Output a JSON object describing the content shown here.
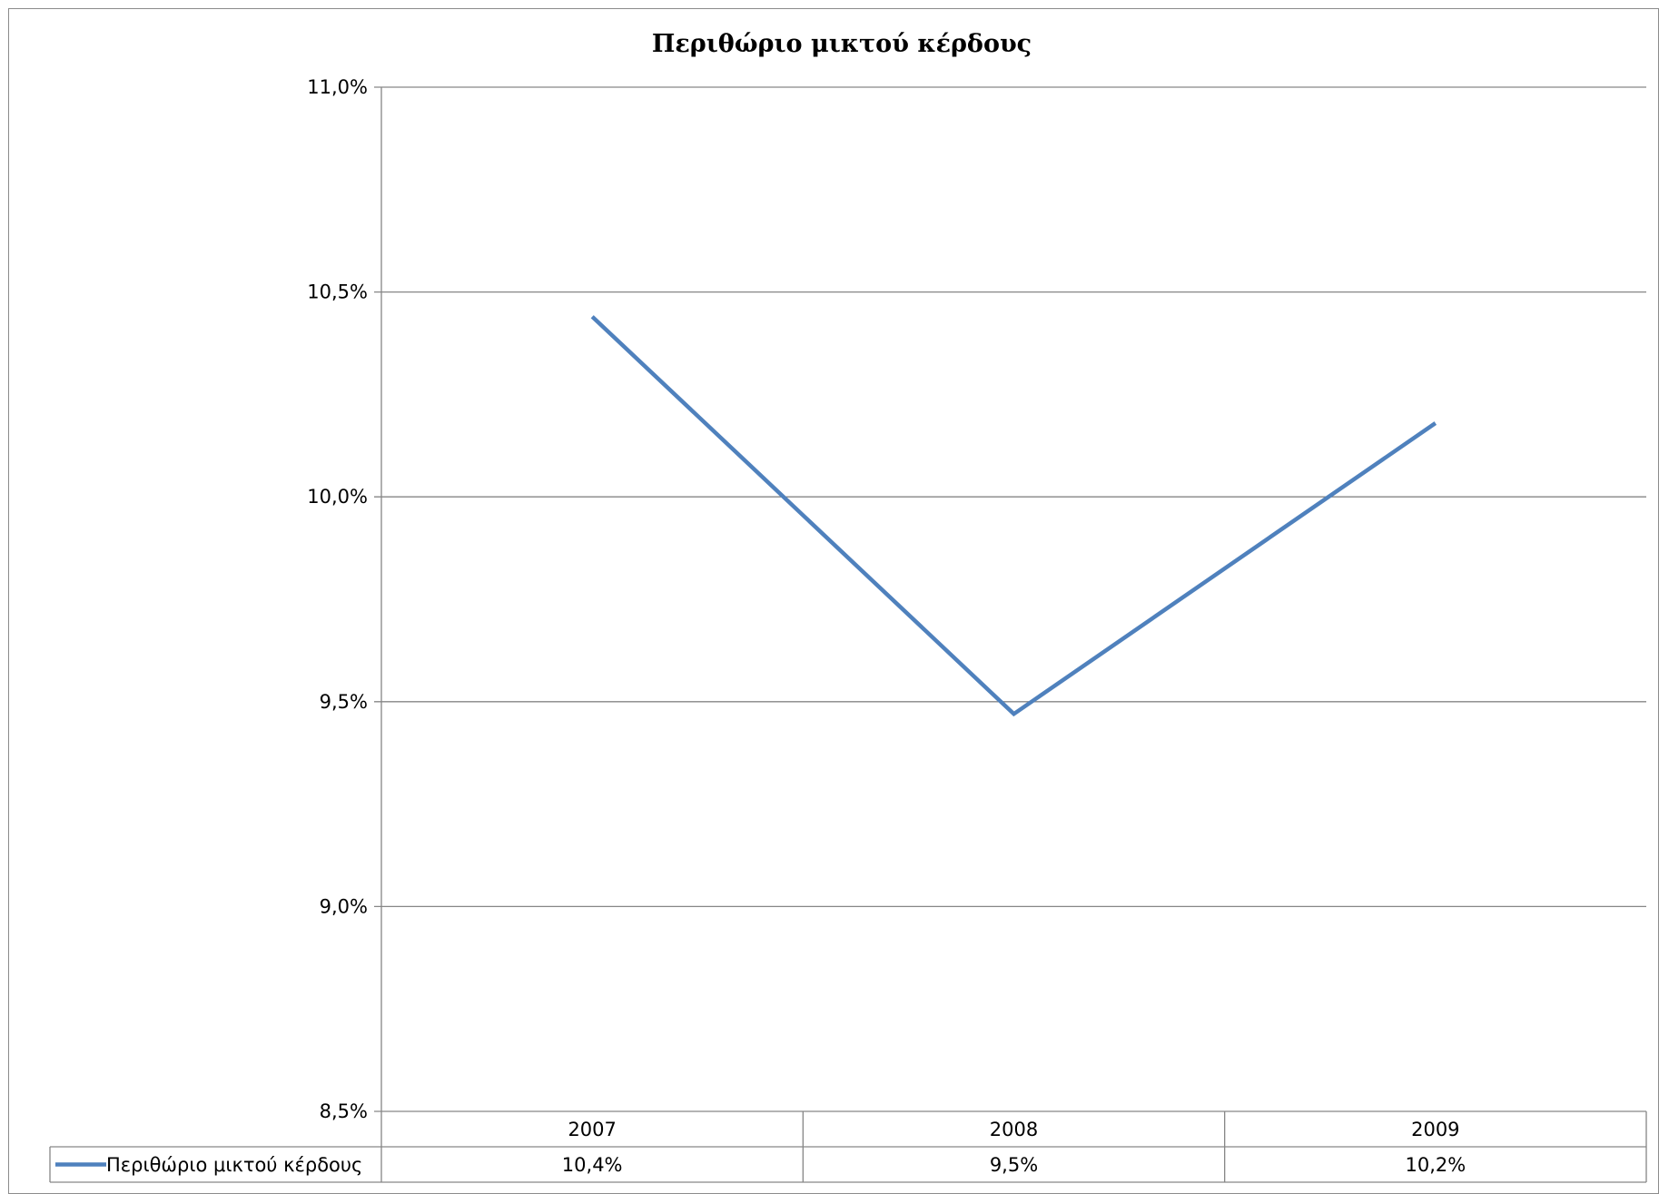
{
  "chart_data": {
    "type": "line",
    "title": "Περιθώριο μικτού κέρδους",
    "xlabel": "",
    "ylabel": "",
    "categories": [
      "2007",
      "2008",
      "2009"
    ],
    "series": [
      {
        "name": "Περιθώριο μικτού κέρδους",
        "values": [
          10.44,
          9.47,
          10.18
        ],
        "table_labels": [
          "10,4%",
          "9,5%",
          "10,2%"
        ],
        "color": "#4f81bd"
      }
    ],
    "ylim": [
      8.5,
      11.0
    ],
    "yticks": [
      8.5,
      9.0,
      9.5,
      10.0,
      10.5,
      11.0
    ],
    "ytick_labels": [
      "8,5%",
      "9,0%",
      "9,5%",
      "10,0%",
      "10,5%",
      "11,0%"
    ],
    "grid": true,
    "legend": "data-table-left",
    "data_table": true
  }
}
